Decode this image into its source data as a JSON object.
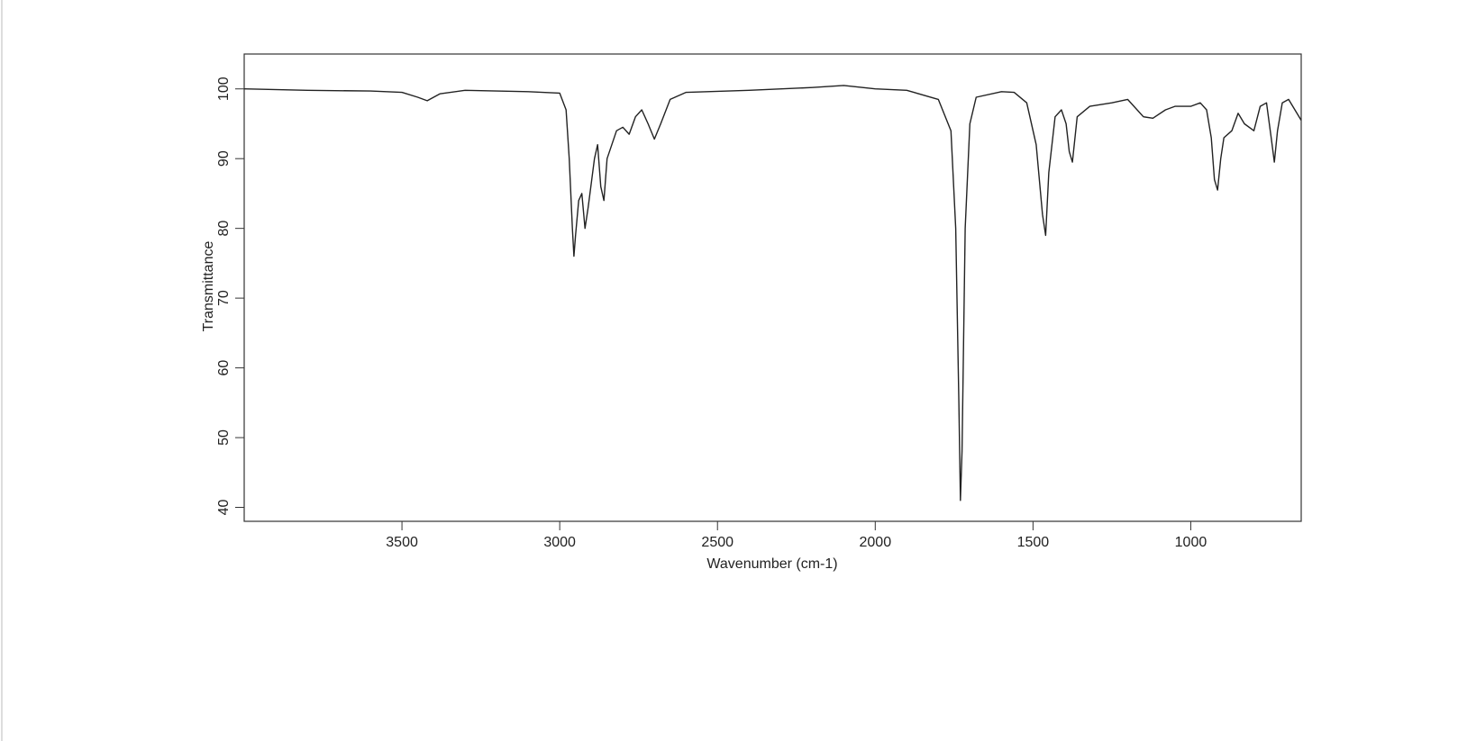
{
  "chart_data": {
    "type": "line",
    "xlabel": "Wavenumber (cm-1)",
    "ylabel": "Transmittance",
    "color": "#222222",
    "x": [
      4000,
      3800,
      3600,
      3500,
      3450,
      3420,
      3380,
      3300,
      3100,
      3000,
      2980,
      2970,
      2960,
      2955,
      2950,
      2940,
      2930,
      2920,
      2910,
      2890,
      2880,
      2870,
      2860,
      2850,
      2820,
      2800,
      2780,
      2760,
      2740,
      2720,
      2700,
      2680,
      2650,
      2600,
      2400,
      2200,
      2100,
      2000,
      1900,
      1800,
      1760,
      1745,
      1735,
      1730,
      1725,
      1715,
      1700,
      1680,
      1600,
      1560,
      1520,
      1490,
      1470,
      1460,
      1450,
      1430,
      1410,
      1395,
      1385,
      1375,
      1360,
      1320,
      1250,
      1200,
      1150,
      1120,
      1080,
      1050,
      1000,
      970,
      950,
      935,
      925,
      915,
      905,
      895,
      870,
      850,
      830,
      800,
      780,
      760,
      745,
      735,
      725,
      710,
      690,
      670,
      650
    ],
    "values": [
      100,
      99.8,
      99.7,
      99.5,
      98.8,
      98.3,
      99.3,
      99.8,
      99.6,
      99.4,
      97,
      90,
      80,
      76,
      79,
      84,
      85,
      80,
      83,
      90,
      92,
      86,
      84,
      90,
      94,
      94.5,
      93.5,
      96,
      97,
      95,
      92.8,
      95,
      98.5,
      99.5,
      99.8,
      100.2,
      100.5,
      100,
      99.8,
      98.5,
      94,
      80,
      55,
      41,
      48,
      80,
      95,
      98.8,
      99.6,
      99.5,
      98,
      92,
      82,
      79,
      88,
      96,
      97,
      95,
      91,
      89.5,
      96,
      97.5,
      98,
      98.5,
      96,
      95.8,
      97,
      97.5,
      97.5,
      98,
      97,
      93,
      87,
      85.5,
      90,
      93,
      94,
      96.5,
      95,
      94,
      97.5,
      98,
      93,
      89.5,
      94,
      98,
      98.5,
      97,
      95.5
    ],
    "xlim": [
      4000,
      650
    ],
    "ylim": [
      38,
      105
    ],
    "xticks": [
      3500,
      3000,
      2500,
      2000,
      1500,
      1000
    ],
    "yticks": [
      40,
      50,
      60,
      70,
      80,
      90,
      100
    ]
  }
}
